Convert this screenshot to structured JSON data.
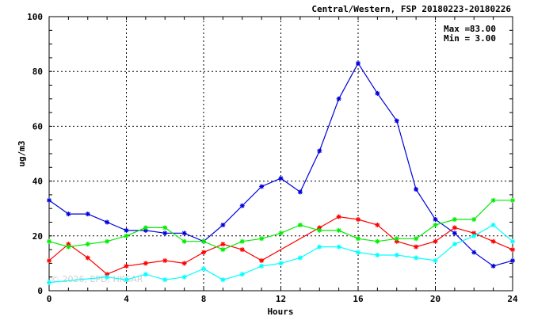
{
  "chart_data": {
    "type": "line",
    "title": "Central/Western, FSP 20180223-20180226",
    "xlabel": "Hours",
    "ylabel": "ug/m3",
    "xlim": [
      0,
      24
    ],
    "ylim": [
      0,
      100
    ],
    "x_ticks": [
      "0",
      "4",
      "8",
      "12",
      "16",
      "20",
      "24"
    ],
    "y_ticks": [
      "0",
      "20",
      "40",
      "60",
      "80",
      "100"
    ],
    "grid": true,
    "stats": {
      "max_label": "Max =",
      "max_value": "83.00",
      "min_label": "Min =",
      "min_value": "3.00"
    },
    "watermark": "© 2026, EPD, HKSAR",
    "series": [
      {
        "color": "#0000dd",
        "x": [
          0,
          1,
          2,
          3,
          4,
          5,
          6,
          7,
          8,
          9,
          10,
          11,
          12,
          13,
          14,
          15,
          16,
          17,
          18,
          19,
          20,
          21,
          22,
          23,
          24
        ],
        "values": [
          33,
          28,
          28,
          25,
          22,
          22,
          21,
          21,
          18,
          24,
          31,
          38,
          41,
          36,
          51,
          70,
          83,
          72,
          62,
          37,
          26,
          21,
          14,
          9,
          11
        ]
      },
      {
        "color": "#ff0000",
        "x": [
          0,
          1,
          2,
          3,
          4,
          5,
          6,
          7,
          8,
          9,
          10,
          11,
          14,
          15,
          16,
          17,
          18,
          19,
          20,
          21,
          22,
          23,
          24
        ],
        "values": [
          11,
          17,
          12,
          6,
          9,
          10,
          11,
          10,
          14,
          17,
          15,
          11,
          23,
          27,
          26,
          24,
          18,
          16,
          18,
          23,
          21,
          18,
          15
        ]
      },
      {
        "color": "#00ee00",
        "x": [
          0,
          1,
          2,
          3,
          4,
          5,
          6,
          7,
          8,
          9,
          10,
          11,
          12,
          13,
          14,
          15,
          16,
          17,
          18,
          19,
          20,
          21,
          22,
          23,
          24
        ],
        "values": [
          18,
          16,
          17,
          18,
          20,
          23,
          23,
          18,
          18,
          15,
          18,
          19,
          21,
          24,
          22,
          22,
          19,
          18,
          19,
          19,
          24,
          26,
          26,
          33,
          33
        ]
      },
      {
        "color": "#00ffff",
        "x": [
          0,
          3,
          4,
          5,
          6,
          7,
          8,
          9,
          10,
          11,
          12,
          13,
          14,
          15,
          16,
          17,
          18,
          19,
          20,
          21,
          22,
          23,
          24
        ],
        "values": [
          3,
          5,
          4,
          6,
          4,
          5,
          8,
          4,
          6,
          9,
          10,
          12,
          16,
          16,
          14,
          13,
          13,
          12,
          11,
          17,
          20,
          24,
          18
        ]
      }
    ]
  }
}
